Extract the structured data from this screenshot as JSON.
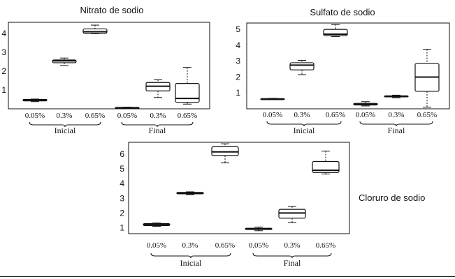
{
  "chart_data": [
    {
      "type": "box",
      "title": "Nitrato de sodio",
      "xlabel": "",
      "ylabel": "",
      "ylim": [
        0.0,
        4.6
      ],
      "yticks": [
        1,
        2,
        3,
        4
      ],
      "ytick_labels": [
        "1",
        "2",
        "3",
        "4"
      ],
      "categories": [
        "0.05%",
        "0.3%",
        "0.65%",
        "0.05%",
        "0.3%",
        "0.65%"
      ],
      "groups": [
        {
          "label": "Inicial",
          "categories": [
            0,
            1,
            2
          ]
        },
        {
          "label": "Final",
          "categories": [
            3,
            4,
            5
          ]
        }
      ],
      "boxes": [
        {
          "min": 0.38,
          "q1": 0.42,
          "median": 0.46,
          "q3": 0.5,
          "max": 0.52
        },
        {
          "min": 2.3,
          "q1": 2.45,
          "median": 2.55,
          "q3": 2.6,
          "max": 2.7
        },
        {
          "min": 4.0,
          "q1": 4.02,
          "median": 4.1,
          "q3": 4.25,
          "max": 4.45
        },
        {
          "min": 0.02,
          "q1": 0.04,
          "median": 0.06,
          "q3": 0.07,
          "max": 0.09
        },
        {
          "min": 0.6,
          "q1": 0.95,
          "median": 1.2,
          "q3": 1.4,
          "max": 1.55
        },
        {
          "min": 0.25,
          "q1": 0.35,
          "median": 0.55,
          "q3": 1.35,
          "max": 2.2
        }
      ]
    },
    {
      "type": "box",
      "title": "Sulfato de sodio",
      "xlabel": "",
      "ylabel": "",
      "ylim": [
        0.0,
        5.4
      ],
      "yticks": [
        1,
        2,
        3,
        4,
        5
      ],
      "ytick_labels": [
        "1",
        "2",
        "3",
        "4",
        "5"
      ],
      "categories": [
        "0.05%",
        "0.3%",
        "0.65%",
        "0.05%",
        "0.3%",
        "0.65%"
      ],
      "groups": [
        {
          "label": "Inicial",
          "categories": [
            0,
            1,
            2
          ]
        },
        {
          "label": "Final",
          "categories": [
            3,
            4,
            5
          ]
        }
      ],
      "boxes": [
        {
          "min": 0.58,
          "q1": 0.6,
          "median": 0.62,
          "q3": 0.64,
          "max": 0.66
        },
        {
          "min": 2.15,
          "q1": 2.45,
          "median": 2.75,
          "q3": 2.9,
          "max": 3.05
        },
        {
          "min": 4.55,
          "q1": 4.6,
          "median": 4.7,
          "q3": 5.0,
          "max": 5.3
        },
        {
          "min": 0.18,
          "q1": 0.24,
          "median": 0.28,
          "q3": 0.34,
          "max": 0.45
        },
        {
          "min": 0.7,
          "q1": 0.75,
          "median": 0.78,
          "q3": 0.82,
          "max": 0.86
        },
        {
          "min": 0.1,
          "q1": 1.1,
          "median": 2.0,
          "q3": 2.85,
          "max": 3.75
        }
      ]
    },
    {
      "type": "box",
      "title": "Cloruro de sodio",
      "xlabel": "",
      "ylabel": "",
      "ylim": [
        0.6,
        6.8
      ],
      "yticks": [
        1,
        2,
        3,
        4,
        5,
        6
      ],
      "ytick_labels": [
        "1",
        "2",
        "3",
        "4",
        "5",
        "6"
      ],
      "categories": [
        "0.05%",
        "0.3%",
        "0.65%",
        "0.05%",
        "0.3%",
        "0.65%"
      ],
      "groups": [
        {
          "label": "Inicial",
          "categories": [
            0,
            1,
            2
          ]
        },
        {
          "label": "Final",
          "categories": [
            3,
            4,
            5
          ]
        }
      ],
      "boxes": [
        {
          "min": 1.1,
          "q1": 1.15,
          "median": 1.22,
          "q3": 1.28,
          "max": 1.32
        },
        {
          "min": 3.25,
          "q1": 3.3,
          "median": 3.35,
          "q3": 3.4,
          "max": 3.44
        },
        {
          "min": 5.4,
          "q1": 5.9,
          "median": 6.15,
          "q3": 6.5,
          "max": 6.7
        },
        {
          "min": 0.8,
          "q1": 0.88,
          "median": 0.92,
          "q3": 0.97,
          "max": 1.05
        },
        {
          "min": 1.35,
          "q1": 1.65,
          "median": 2.0,
          "q3": 2.25,
          "max": 2.45
        },
        {
          "min": 4.65,
          "q1": 4.75,
          "median": 4.9,
          "q3": 5.5,
          "max": 6.2
        }
      ]
    }
  ]
}
